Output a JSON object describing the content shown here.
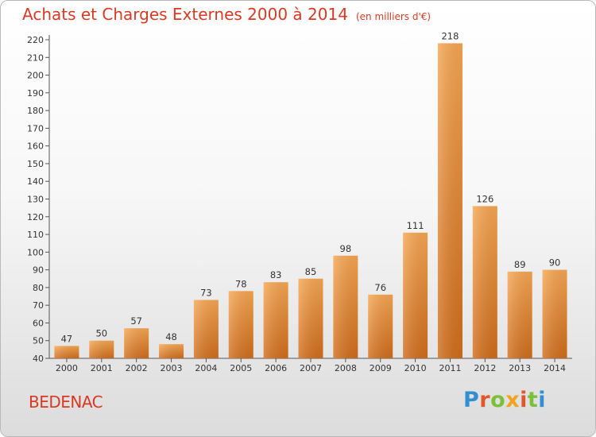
{
  "header": {
    "title": "Achats et Charges Externes 2000 à 2014",
    "unit": "(en milliers d'€)"
  },
  "footer": {
    "commune": "BEDENAC",
    "logo_letters": [
      "P",
      "r",
      "o",
      "x",
      "i",
      "t",
      "i"
    ]
  },
  "colors": {
    "title": "#d63a23",
    "bar_light": "#f5a452",
    "bar_dark": "#d5721e",
    "logo_blue": "#2f8fd1",
    "logo_red": "#e0572b",
    "logo_green": "#7cbf3a",
    "logo_orange": "#f2a31b"
  },
  "chart_data": {
    "type": "bar",
    "title": "Achats et Charges Externes 2000 à 2014",
    "subtitle": "(en milliers d'€)",
    "xlabel": "",
    "ylabel": "",
    "categories": [
      "2000",
      "2001",
      "2002",
      "2003",
      "2004",
      "2005",
      "2006",
      "2007",
      "2008",
      "2009",
      "2010",
      "2011",
      "2012",
      "2013",
      "2014"
    ],
    "values": [
      47,
      50,
      57,
      48,
      73,
      78,
      83,
      85,
      98,
      76,
      111,
      218,
      126,
      89,
      90
    ],
    "ylim": [
      40,
      220
    ],
    "yticks": [
      40,
      50,
      60,
      70,
      80,
      90,
      100,
      110,
      120,
      130,
      140,
      150,
      160,
      170,
      180,
      190,
      200,
      210,
      220
    ],
    "grid": false,
    "legend": "none",
    "data_labels": true
  }
}
